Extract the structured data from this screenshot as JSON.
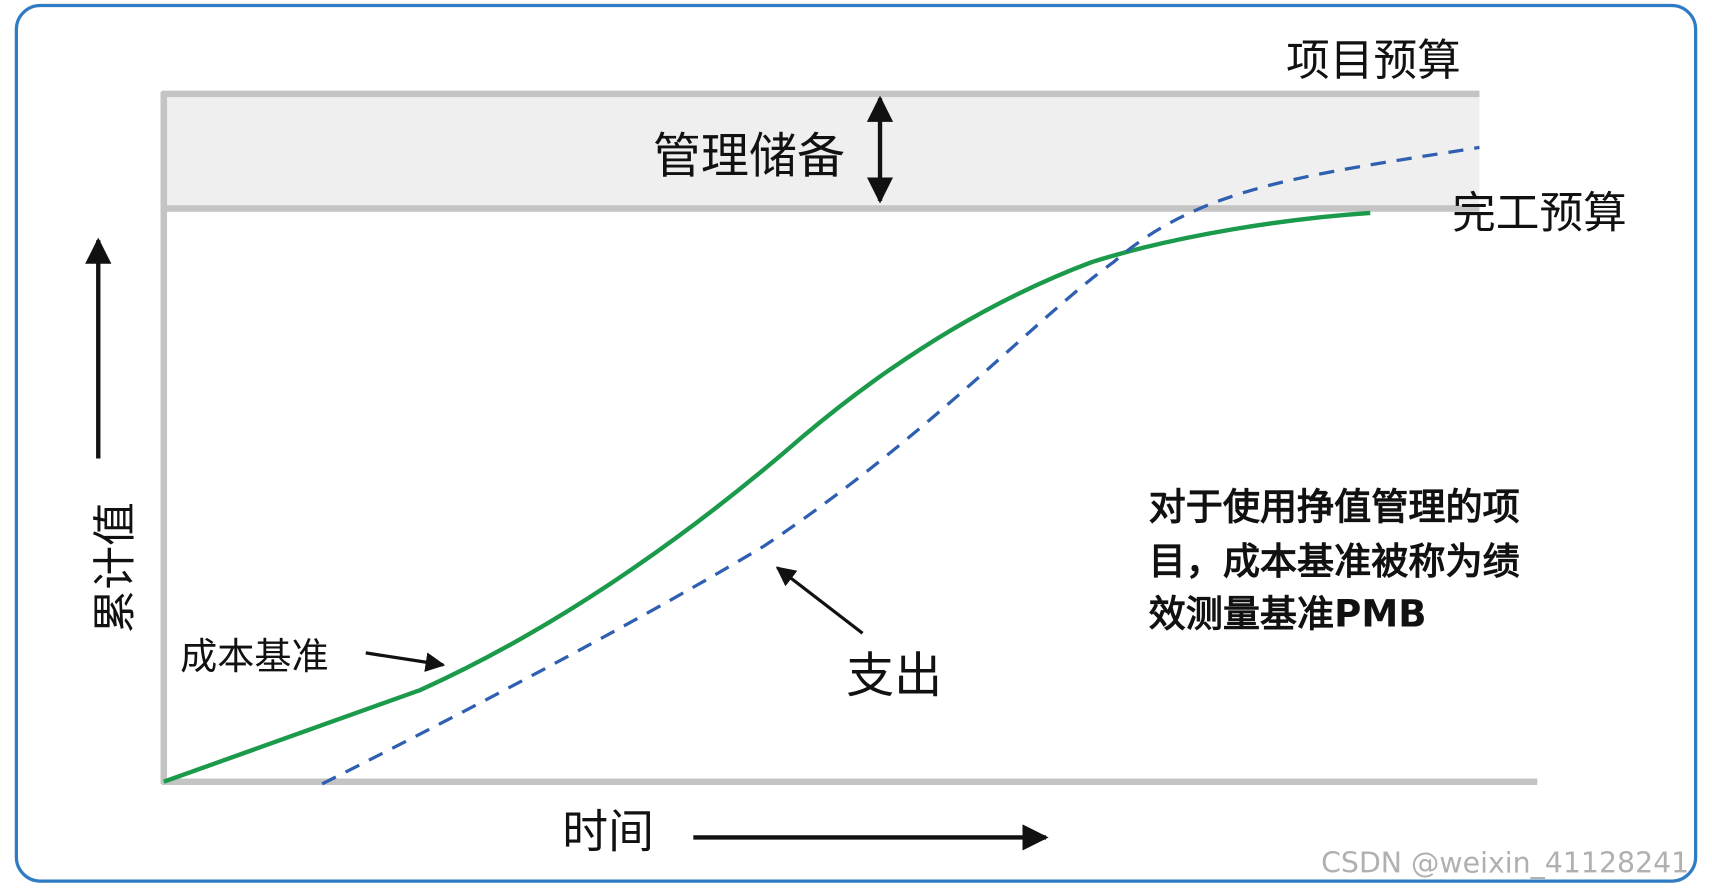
{
  "labels": {
    "project_budget": "项目预算",
    "management_reserve": "管理储备",
    "bac": "完工预算",
    "y_axis": "累计值",
    "x_axis": "时间",
    "cost_baseline": "成本基准",
    "expenditure": "支出"
  },
  "note": {
    "lines": [
      "对于使用挣值管理的项",
      "目，成本基准被称为绩",
      "效测量基准PMB"
    ]
  },
  "watermark": "CSDN @weixin_41128241"
}
